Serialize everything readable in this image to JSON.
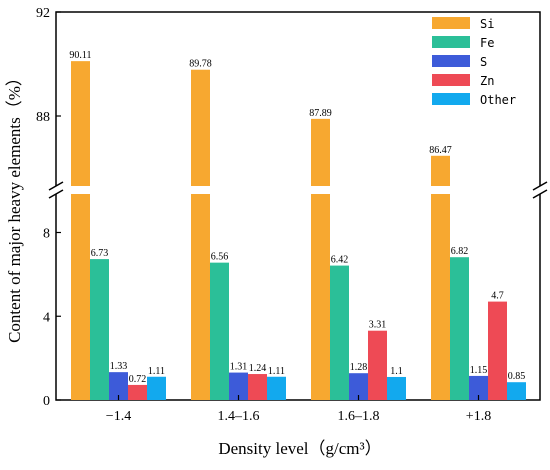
{
  "chart_data": {
    "type": "bar",
    "categories": [
      "−1.4",
      "1.4–1.6",
      "1.6–1.8",
      "+1.8"
    ],
    "series": [
      {
        "name": "Si",
        "color": "#F7A830",
        "values": [
          90.11,
          89.78,
          87.89,
          86.47
        ]
      },
      {
        "name": "Fe",
        "color": "#2BBF98",
        "values": [
          6.73,
          6.56,
          6.42,
          6.82
        ]
      },
      {
        "name": "S",
        "color": "#3D5BD9",
        "values": [
          1.33,
          1.31,
          1.28,
          1.15
        ]
      },
      {
        "name": "Zn",
        "color": "#EE4A55",
        "values": [
          0.72,
          1.24,
          3.31,
          4.7
        ]
      },
      {
        "name": "Other",
        "color": "#12A9EE",
        "values": [
          1.11,
          1.11,
          1.1,
          0.85
        ]
      }
    ],
    "value_labels": [
      [
        "90.11",
        "89.78",
        "87.89",
        "86.47"
      ],
      [
        "6.73",
        "6.56",
        "6.42",
        "6.82"
      ],
      [
        "1.33",
        "1.31",
        "1.28",
        "1.15"
      ],
      [
        "0.72",
        "1.24",
        "3.31",
        "4.7"
      ],
      [
        "1.11",
        "1.11",
        "1.1",
        "0.85"
      ]
    ],
    "xlabel": "Density level（g/cm³）",
    "ylabel": "Content of major heavy elements（%）",
    "broken_y_axis": true,
    "lower_segment": {
      "ylim": [
        0,
        9.6
      ],
      "ticks": [
        0,
        4,
        8
      ]
    },
    "upper_segment": {
      "ylim": [
        85.5,
        92
      ],
      "ticks": [
        88,
        92
      ]
    },
    "legend_position": "top-right",
    "grid": false
  }
}
